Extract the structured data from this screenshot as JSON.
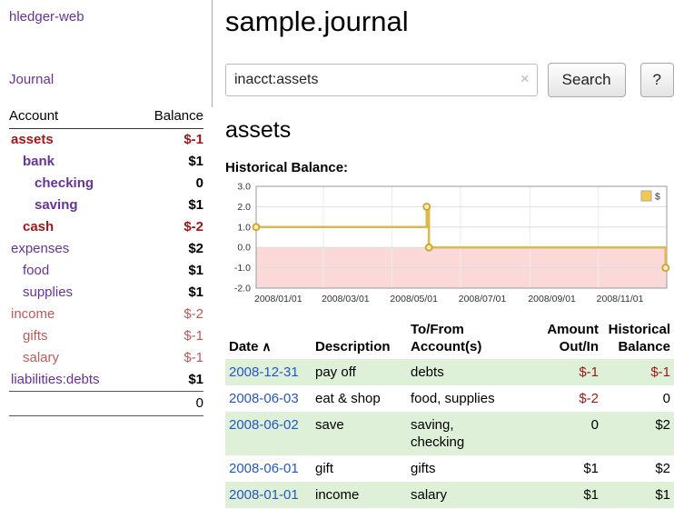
{
  "app": {
    "title": "hledger-web",
    "nav_journal": "Journal"
  },
  "sidebar": {
    "accounts_header": {
      "account": "Account",
      "balance": "Balance"
    },
    "accounts": [
      {
        "name": "assets",
        "indent": 0,
        "balance": "$-1",
        "emph": true,
        "negative": true
      },
      {
        "name": "bank",
        "indent": 1,
        "balance": "$1",
        "emph": true,
        "negative": false
      },
      {
        "name": "checking",
        "indent": 2,
        "balance": "0",
        "emph": true,
        "negative": false
      },
      {
        "name": "saving",
        "indent": 2,
        "balance": "$1",
        "emph": true,
        "negative": false
      },
      {
        "name": "cash",
        "indent": 1,
        "balance": "$-2",
        "emph": true,
        "negative": true
      },
      {
        "name": "expenses",
        "indent": 0,
        "balance": "$2",
        "emph": false,
        "negative": false
      },
      {
        "name": "food",
        "indent": 1,
        "balance": "$1",
        "emph": false,
        "negative": false
      },
      {
        "name": "supplies",
        "indent": 1,
        "balance": "$1",
        "emph": false,
        "negative": false
      },
      {
        "name": "income",
        "indent": 0,
        "balance": "$-2",
        "emph": false,
        "negative": true
      },
      {
        "name": "gifts",
        "indent": 1,
        "balance": "$-1",
        "emph": false,
        "negative": true
      },
      {
        "name": "salary",
        "indent": 1,
        "balance": "$-1",
        "emph": false,
        "negative": true
      },
      {
        "name": "liabilities:debts",
        "indent": 0,
        "balance": "$1",
        "emph": false,
        "negative": false
      }
    ],
    "total": "0"
  },
  "main": {
    "title": "sample.journal",
    "search": {
      "value": "inacct:assets",
      "clear": "×",
      "button": "Search",
      "help": "?"
    },
    "account_heading": "assets",
    "chart_label": "Historical Balance:"
  },
  "icons": {
    "sort_asc": "∧",
    "clear_search": "×"
  },
  "chart_data": {
    "type": "line",
    "step": true,
    "title": "Historical Balance",
    "series": [
      {
        "name": "$",
        "points": [
          [
            "2008-01-01",
            1
          ],
          [
            "2008-06-01",
            2
          ],
          [
            "2008-06-03",
            0
          ],
          [
            "2008-12-31",
            -1
          ]
        ]
      }
    ],
    "ylim": [
      -2.0,
      3.0
    ],
    "yticks": [
      3,
      2,
      1,
      0,
      -1,
      -2
    ],
    "xticks": [
      "2008/01/01",
      "2008/03/01",
      "2008/05/01",
      "2008/07/01",
      "2008/09/01",
      "2008/11/01"
    ],
    "xrange": [
      "2008-01-01",
      "2009-01-01"
    ],
    "grid": true,
    "legend_position": "top-right",
    "line_color": "#ddb84a",
    "marker_fill": "#fdf0bd",
    "marker_stroke": "#cfa125",
    "negative_region_color": "#fcd9d9"
  },
  "register": {
    "columns": [
      {
        "key": "date",
        "label": [
          "Date"
        ],
        "align": "left",
        "sortable": true
      },
      {
        "key": "description",
        "label": [
          "Description"
        ],
        "align": "left",
        "sortable": false
      },
      {
        "key": "accounts",
        "label": [
          "To/From",
          "Account(s)"
        ],
        "align": "left",
        "sortable": false
      },
      {
        "key": "amount",
        "label": [
          "Amount",
          "Out/In"
        ],
        "align": "right",
        "sortable": false
      },
      {
        "key": "balance",
        "label": [
          "Historical",
          "Balance"
        ],
        "align": "right",
        "sortable": false
      }
    ],
    "rows": [
      {
        "date": "2008-12-31",
        "description": "pay off",
        "accounts": "debts",
        "amount": "$-1",
        "amount_negative": true,
        "balance": "$-1",
        "balance_negative": true
      },
      {
        "date": "2008-06-03",
        "description": "eat & shop",
        "accounts": "food, supplies",
        "amount": "$-2",
        "amount_negative": true,
        "balance": "0",
        "balance_negative": false
      },
      {
        "date": "2008-06-02",
        "description": "save",
        "accounts": "saving,\nchecking",
        "amount": "0",
        "amount_negative": false,
        "balance": "$2",
        "balance_negative": false
      },
      {
        "date": "2008-06-01",
        "description": "gift",
        "accounts": "gifts",
        "amount": "$1",
        "amount_negative": false,
        "balance": "$2",
        "balance_negative": false
      },
      {
        "date": "2008-01-01",
        "description": "income",
        "accounts": "salary",
        "amount": "$1",
        "amount_negative": false,
        "balance": "$1",
        "balance_negative": false
      }
    ]
  }
}
